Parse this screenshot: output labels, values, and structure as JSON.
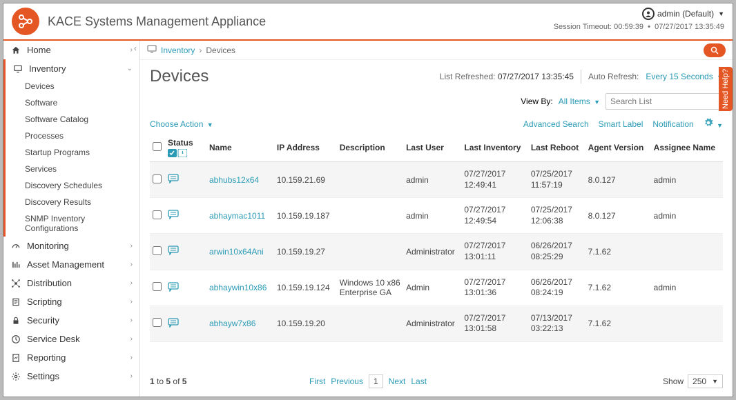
{
  "header": {
    "title": "KACE Systems Management Appliance",
    "user_label": "admin (Default)",
    "session_label": "Session Timeout:",
    "session_time": "00:59:39",
    "session_date": "07/27/2017 13:35:49"
  },
  "sidebar": {
    "items": [
      {
        "icon": "home",
        "label": "Home",
        "state": "collapsed"
      },
      {
        "icon": "monitor",
        "label": "Inventory",
        "state": "expanded",
        "active": true,
        "children": [
          "Devices",
          "Software",
          "Software Catalog",
          "Processes",
          "Startup Programs",
          "Services",
          "Discovery Schedules",
          "Discovery Results",
          "SNMP Inventory Configurations"
        ]
      },
      {
        "icon": "gauge",
        "label": "Monitoring",
        "state": "collapsed"
      },
      {
        "icon": "bars",
        "label": "Asset Management",
        "state": "collapsed"
      },
      {
        "icon": "dist",
        "label": "Distribution",
        "state": "collapsed"
      },
      {
        "icon": "scroll",
        "label": "Scripting",
        "state": "collapsed"
      },
      {
        "icon": "lock",
        "label": "Security",
        "state": "collapsed"
      },
      {
        "icon": "clock",
        "label": "Service Desk",
        "state": "collapsed"
      },
      {
        "icon": "report",
        "label": "Reporting",
        "state": "collapsed"
      },
      {
        "icon": "gear",
        "label": "Settings",
        "state": "collapsed"
      }
    ]
  },
  "breadcrumb": {
    "root": "Inventory",
    "current": "Devices"
  },
  "page": {
    "title": "Devices",
    "refreshed_label": "List Refreshed:",
    "refreshed_value": "07/27/2017 13:35:45",
    "auto_refresh_label": "Auto Refresh:",
    "auto_refresh_value": "Every 15 Seconds",
    "viewby_label": "View By:",
    "viewby_value": "All Items",
    "search_placeholder": "Search List",
    "choose_action": "Choose Action",
    "advanced_search": "Advanced Search",
    "smart_label": "Smart Label",
    "notification": "Notification",
    "help_tab": "Need Help?"
  },
  "table": {
    "columns": [
      "",
      "Status",
      "Name",
      "IP Address",
      "Description",
      "Last User",
      "Last Inventory",
      "Last Reboot",
      "Agent Version",
      "Assignee Name"
    ],
    "rows": [
      {
        "name": "abhubs12x64",
        "ip": "10.159.21.69",
        "desc": "",
        "user": "admin",
        "inv1": "07/27/2017",
        "inv2": "12:49:41",
        "reb1": "07/25/2017",
        "reb2": "11:57:19",
        "ver": "8.0.127",
        "assignee": "admin"
      },
      {
        "name": "abhaymac1011",
        "ip": "10.159.19.187",
        "desc": "",
        "user": "admin",
        "inv1": "07/27/2017",
        "inv2": "12:49:54",
        "reb1": "07/25/2017",
        "reb2": "12:06:38",
        "ver": "8.0.127",
        "assignee": "admin"
      },
      {
        "name": "arwin10x64Ani",
        "ip": "10.159.19.27",
        "desc": "",
        "user": "Administrator",
        "inv1": "07/27/2017",
        "inv2": "13:01:11",
        "reb1": "06/26/2017",
        "reb2": "08:25:29",
        "ver": "7.1.62",
        "assignee": ""
      },
      {
        "name": "abhaywin10x86",
        "ip": "10.159.19.124",
        "desc": "Windows 10 x86 Enterprise GA",
        "user": "Admin",
        "inv1": "07/27/2017",
        "inv2": "13:01:36",
        "reb1": "06/26/2017",
        "reb2": "08:24:19",
        "ver": "7.1.62",
        "assignee": "admin"
      },
      {
        "name": "abhayw7x86",
        "ip": "10.159.19.20",
        "desc": "",
        "user": "Administrator",
        "inv1": "07/27/2017",
        "inv2": "13:01:58",
        "reb1": "07/13/2017",
        "reb2": "03:22:13",
        "ver": "7.1.62",
        "assignee": ""
      }
    ]
  },
  "pagination": {
    "summary_prefix": "1",
    "summary_to": "to",
    "summary_mid": "5",
    "summary_of": "of",
    "summary_total": "5",
    "first": "First",
    "prev": "Previous",
    "page": "1",
    "next": "Next",
    "last": "Last",
    "show_label": "Show",
    "show_value": "250"
  },
  "colors": {
    "accent": "#e55625",
    "teal": "#2a9bb5"
  }
}
